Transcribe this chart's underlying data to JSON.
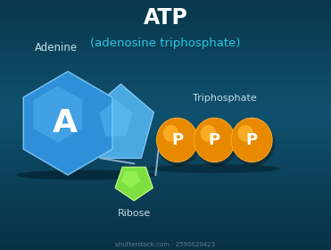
{
  "title": "ATP",
  "subtitle": "(adenosine triphosphate)",
  "title_color": "#FFFFFF",
  "subtitle_color": "#29C8E0",
  "bg_color1": "#0A3A52",
  "bg_color2": "#0D4D6A",
  "adenine_label": "Adenine",
  "adenine_letter": "A",
  "adenine_hex_color": "#2F8FD8",
  "adenine_hex_light": "#5BB8F5",
  "adenine_pent_color": "#4AAAE0",
  "adenine_pent_light": "#6DCFFF",
  "ribose_label": "Ribose",
  "ribose_color": "#7EE040",
  "ribose_light": "#AAFF66",
  "phosphate_label": "Triphosphate",
  "phosphate_letter": "P",
  "phosphate_color": "#E88A00",
  "phosphate_light": "#FFB830",
  "connector_color": "#8AADCA",
  "label_color": "#C8DDE8",
  "watermark": "shutterstock.com · 2590020423"
}
